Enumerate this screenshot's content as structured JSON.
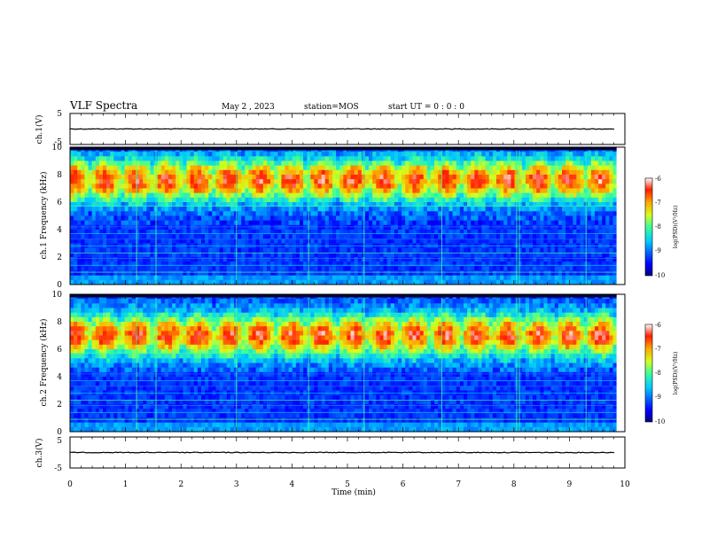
{
  "header": {
    "title": "VLF Spectra",
    "date": "May 2 , 2023",
    "station": "station=MOS",
    "start_ut": "start UT = 0 : 0 : 0"
  },
  "chart_data": [
    {
      "type": "line",
      "id": "ch1v",
      "ylabel": "ch.1(V)",
      "ylim": [
        -5,
        5
      ],
      "yticks": [
        "5",
        "-5"
      ],
      "series": [
        {
          "x": [
            0,
            10
          ],
          "y": [
            0,
            0
          ]
        }
      ]
    },
    {
      "type": "heatmap",
      "id": "ch1spec",
      "ylabel": "ch.1 Frequency (kHz)",
      "ylim": [
        0,
        10
      ],
      "yticks": [
        "0",
        "2",
        "4",
        "6",
        "8",
        "10"
      ],
      "xlim": [
        0,
        10
      ],
      "x_end": 9.85,
      "band_center_khz": 7.6,
      "colorbar": {
        "label": "log(PSD)(V²/Hz)",
        "ticks": [
          "-6",
          "-7",
          "-8",
          "-9",
          "-10"
        ],
        "range": [
          -10,
          -6
        ]
      }
    },
    {
      "type": "heatmap",
      "id": "ch2spec",
      "ylabel": "ch.2 Frequency (kHz)",
      "ylim": [
        0,
        10
      ],
      "yticks": [
        "0",
        "2",
        "4",
        "6",
        "8",
        "10"
      ],
      "xlim": [
        0,
        10
      ],
      "x_end": 9.85,
      "band_center_khz": 7.0,
      "colorbar": {
        "label": "log(PSD)(V²/Hz)",
        "ticks": [
          "-6",
          "-7",
          "-8",
          "-9",
          "-10"
        ],
        "range": [
          -10,
          -6
        ]
      }
    },
    {
      "type": "line",
      "id": "ch3v",
      "ylabel": "ch.3(V)",
      "ylim": [
        -5,
        5
      ],
      "yticks": [
        "5",
        "-5"
      ],
      "series": [
        {
          "x": [
            0,
            10
          ],
          "y": [
            0,
            0
          ]
        }
      ]
    }
  ],
  "xaxis": {
    "label": "Time (min)",
    "ticks": [
      "0",
      "1",
      "2",
      "3",
      "4",
      "5",
      "6",
      "7",
      "8",
      "9",
      "10"
    ],
    "range": [
      0,
      10
    ]
  },
  "colors": {
    "line": "#000000",
    "background": "#000000"
  }
}
